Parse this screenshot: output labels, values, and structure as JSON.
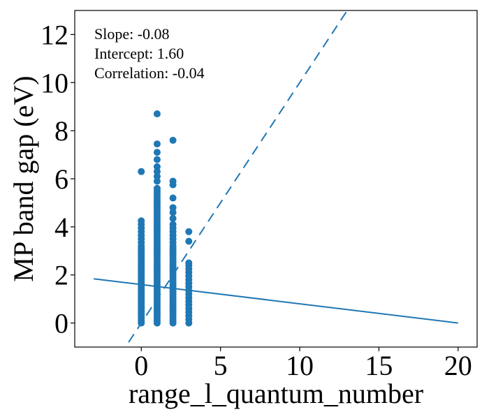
{
  "chart_data": {
    "type": "scatter",
    "xlabel": "range_l_quantum_number",
    "ylabel": "MP band gap (eV)",
    "xlim": [
      -4.2,
      21.2
    ],
    "ylim": [
      -1.0,
      13.0
    ],
    "xticks": [
      0,
      5,
      10,
      15,
      20
    ],
    "yticks": [
      0,
      2,
      4,
      6,
      8,
      10,
      12
    ],
    "xtick_labels": [
      "0",
      "5",
      "10",
      "15",
      "20"
    ],
    "ytick_labels": [
      "0",
      "2",
      "4",
      "6",
      "8",
      "10",
      "12"
    ],
    "grid": false,
    "point_color": "#1f77b4",
    "annotations": [
      "Slope: -0.08",
      "Intercept: 1.60",
      "Correlation: -0.04"
    ],
    "series": [
      {
        "kind": "points",
        "points": [
          {
            "x": 0,
            "y": 0.0
          },
          {
            "x": 0,
            "y": 0.1
          },
          {
            "x": 0,
            "y": 0.2
          },
          {
            "x": 0,
            "y": 0.3
          },
          {
            "x": 0,
            "y": 0.4
          },
          {
            "x": 0,
            "y": 0.5
          },
          {
            "x": 0,
            "y": 0.6
          },
          {
            "x": 0,
            "y": 0.7
          },
          {
            "x": 0,
            "y": 0.8
          },
          {
            "x": 0,
            "y": 0.9
          },
          {
            "x": 0,
            "y": 1.0
          },
          {
            "x": 0,
            "y": 1.1
          },
          {
            "x": 0,
            "y": 1.2
          },
          {
            "x": 0,
            "y": 1.3
          },
          {
            "x": 0,
            "y": 1.4
          },
          {
            "x": 0,
            "y": 1.5
          },
          {
            "x": 0,
            "y": 1.6
          },
          {
            "x": 0,
            "y": 1.7
          },
          {
            "x": 0,
            "y": 1.8
          },
          {
            "x": 0,
            "y": 1.9
          },
          {
            "x": 0,
            "y": 2.0
          },
          {
            "x": 0,
            "y": 2.1
          },
          {
            "x": 0,
            "y": 2.2
          },
          {
            "x": 0,
            "y": 2.3
          },
          {
            "x": 0,
            "y": 2.4
          },
          {
            "x": 0,
            "y": 2.5
          },
          {
            "x": 0,
            "y": 2.6
          },
          {
            "x": 0,
            "y": 2.7
          },
          {
            "x": 0,
            "y": 2.8
          },
          {
            "x": 0,
            "y": 2.9
          },
          {
            "x": 0,
            "y": 3.0
          },
          {
            "x": 0,
            "y": 3.1
          },
          {
            "x": 0,
            "y": 3.2
          },
          {
            "x": 0,
            "y": 3.35
          },
          {
            "x": 0,
            "y": 3.5
          },
          {
            "x": 0,
            "y": 3.65
          },
          {
            "x": 0,
            "y": 3.8
          },
          {
            "x": 0,
            "y": 3.95
          },
          {
            "x": 0,
            "y": 4.1
          },
          {
            "x": 0,
            "y": 4.25
          },
          {
            "x": 0,
            "y": 6.3
          },
          {
            "x": 1,
            "y": 0.0
          },
          {
            "x": 1,
            "y": 0.1
          },
          {
            "x": 1,
            "y": 0.2
          },
          {
            "x": 1,
            "y": 0.3
          },
          {
            "x": 1,
            "y": 0.4
          },
          {
            "x": 1,
            "y": 0.5
          },
          {
            "x": 1,
            "y": 0.6
          },
          {
            "x": 1,
            "y": 0.7
          },
          {
            "x": 1,
            "y": 0.8
          },
          {
            "x": 1,
            "y": 0.9
          },
          {
            "x": 1,
            "y": 1.0
          },
          {
            "x": 1,
            "y": 1.1
          },
          {
            "x": 1,
            "y": 1.2
          },
          {
            "x": 1,
            "y": 1.3
          },
          {
            "x": 1,
            "y": 1.4
          },
          {
            "x": 1,
            "y": 1.5
          },
          {
            "x": 1,
            "y": 1.6
          },
          {
            "x": 1,
            "y": 1.7
          },
          {
            "x": 1,
            "y": 1.8
          },
          {
            "x": 1,
            "y": 1.9
          },
          {
            "x": 1,
            "y": 2.0
          },
          {
            "x": 1,
            "y": 2.1
          },
          {
            "x": 1,
            "y": 2.2
          },
          {
            "x": 1,
            "y": 2.3
          },
          {
            "x": 1,
            "y": 2.4
          },
          {
            "x": 1,
            "y": 2.5
          },
          {
            "x": 1,
            "y": 2.6
          },
          {
            "x": 1,
            "y": 2.7
          },
          {
            "x": 1,
            "y": 2.8
          },
          {
            "x": 1,
            "y": 2.9
          },
          {
            "x": 1,
            "y": 3.0
          },
          {
            "x": 1,
            "y": 3.1
          },
          {
            "x": 1,
            "y": 3.2
          },
          {
            "x": 1,
            "y": 3.3
          },
          {
            "x": 1,
            "y": 3.4
          },
          {
            "x": 1,
            "y": 3.5
          },
          {
            "x": 1,
            "y": 3.6
          },
          {
            "x": 1,
            "y": 3.7
          },
          {
            "x": 1,
            "y": 3.8
          },
          {
            "x": 1,
            "y": 3.9
          },
          {
            "x": 1,
            "y": 4.0
          },
          {
            "x": 1,
            "y": 4.1
          },
          {
            "x": 1,
            "y": 4.2
          },
          {
            "x": 1,
            "y": 4.3
          },
          {
            "x": 1,
            "y": 4.4
          },
          {
            "x": 1,
            "y": 4.5
          },
          {
            "x": 1,
            "y": 4.6
          },
          {
            "x": 1,
            "y": 4.7
          },
          {
            "x": 1,
            "y": 4.8
          },
          {
            "x": 1,
            "y": 4.9
          },
          {
            "x": 1,
            "y": 5.0
          },
          {
            "x": 1,
            "y": 5.1
          },
          {
            "x": 1,
            "y": 5.2
          },
          {
            "x": 1,
            "y": 5.3
          },
          {
            "x": 1,
            "y": 5.4
          },
          {
            "x": 1,
            "y": 5.5
          },
          {
            "x": 1,
            "y": 5.6
          },
          {
            "x": 1,
            "y": 5.9
          },
          {
            "x": 1,
            "y": 6.1
          },
          {
            "x": 1,
            "y": 6.3
          },
          {
            "x": 1,
            "y": 6.5
          },
          {
            "x": 1,
            "y": 6.8
          },
          {
            "x": 1,
            "y": 7.1
          },
          {
            "x": 1,
            "y": 7.45
          },
          {
            "x": 1,
            "y": 8.7
          },
          {
            "x": 2,
            "y": 0.0
          },
          {
            "x": 2,
            "y": 0.1
          },
          {
            "x": 2,
            "y": 0.2
          },
          {
            "x": 2,
            "y": 0.3
          },
          {
            "x": 2,
            "y": 0.4
          },
          {
            "x": 2,
            "y": 0.5
          },
          {
            "x": 2,
            "y": 0.6
          },
          {
            "x": 2,
            "y": 0.7
          },
          {
            "x": 2,
            "y": 0.8
          },
          {
            "x": 2,
            "y": 0.9
          },
          {
            "x": 2,
            "y": 1.0
          },
          {
            "x": 2,
            "y": 1.1
          },
          {
            "x": 2,
            "y": 1.2
          },
          {
            "x": 2,
            "y": 1.3
          },
          {
            "x": 2,
            "y": 1.4
          },
          {
            "x": 2,
            "y": 1.5
          },
          {
            "x": 2,
            "y": 1.6
          },
          {
            "x": 2,
            "y": 1.7
          },
          {
            "x": 2,
            "y": 1.8
          },
          {
            "x": 2,
            "y": 1.9
          },
          {
            "x": 2,
            "y": 2.0
          },
          {
            "x": 2,
            "y": 2.1
          },
          {
            "x": 2,
            "y": 2.2
          },
          {
            "x": 2,
            "y": 2.3
          },
          {
            "x": 2,
            "y": 2.4
          },
          {
            "x": 2,
            "y": 2.5
          },
          {
            "x": 2,
            "y": 2.6
          },
          {
            "x": 2,
            "y": 2.7
          },
          {
            "x": 2,
            "y": 2.8
          },
          {
            "x": 2,
            "y": 2.9
          },
          {
            "x": 2,
            "y": 3.0
          },
          {
            "x": 2,
            "y": 3.1
          },
          {
            "x": 2,
            "y": 3.2
          },
          {
            "x": 2,
            "y": 3.35
          },
          {
            "x": 2,
            "y": 3.5
          },
          {
            "x": 2,
            "y": 3.65
          },
          {
            "x": 2,
            "y": 3.8
          },
          {
            "x": 2,
            "y": 3.95
          },
          {
            "x": 2,
            "y": 4.1
          },
          {
            "x": 2,
            "y": 4.35
          },
          {
            "x": 2,
            "y": 4.6
          },
          {
            "x": 2,
            "y": 4.8
          },
          {
            "x": 2,
            "y": 5.2
          },
          {
            "x": 2,
            "y": 5.75
          },
          {
            "x": 2,
            "y": 5.9
          },
          {
            "x": 2,
            "y": 7.6
          },
          {
            "x": 3,
            "y": 0.0
          },
          {
            "x": 3,
            "y": 0.15
          },
          {
            "x": 3,
            "y": 0.3
          },
          {
            "x": 3,
            "y": 0.45
          },
          {
            "x": 3,
            "y": 0.6
          },
          {
            "x": 3,
            "y": 0.75
          },
          {
            "x": 3,
            "y": 0.9
          },
          {
            "x": 3,
            "y": 1.05
          },
          {
            "x": 3,
            "y": 1.2
          },
          {
            "x": 3,
            "y": 1.35
          },
          {
            "x": 3,
            "y": 1.5
          },
          {
            "x": 3,
            "y": 1.65
          },
          {
            "x": 3,
            "y": 1.8
          },
          {
            "x": 3,
            "y": 1.95
          },
          {
            "x": 3,
            "y": 2.1
          },
          {
            "x": 3,
            "y": 2.25
          },
          {
            "x": 3,
            "y": 2.4
          },
          {
            "x": 3,
            "y": 2.5
          },
          {
            "x": 3,
            "y": 3.4
          },
          {
            "x": 3,
            "y": 3.8
          }
        ]
      },
      {
        "kind": "regression-line",
        "style": "solid",
        "x": [
          -3.0,
          20.0
        ],
        "y": [
          1.84,
          -0.0
        ]
      },
      {
        "kind": "identity-line",
        "style": "dashed",
        "x": [
          -0.8,
          13.0
        ],
        "y": [
          -0.8,
          13.0
        ]
      }
    ]
  }
}
